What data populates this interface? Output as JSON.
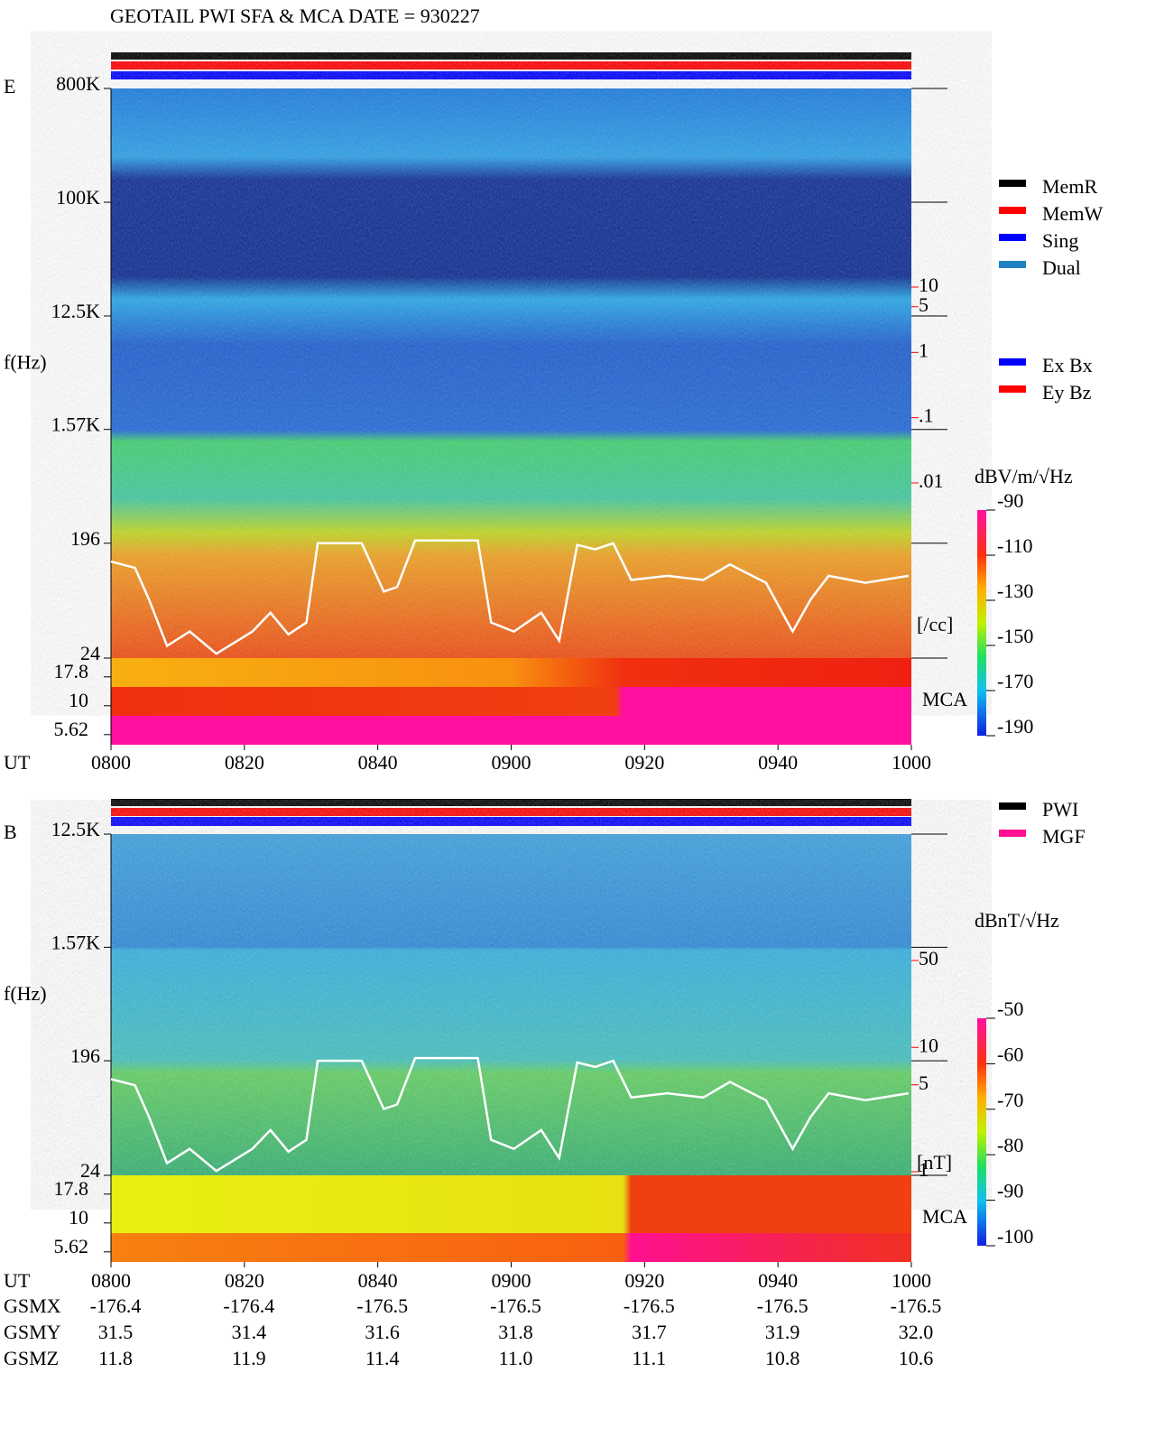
{
  "title": "GEOTAIL  PWI SFA & MCA   DATE = 930227",
  "chart_data": [
    {
      "type": "spectrogram",
      "panel_label": "E",
      "y_label": "f(Hz)",
      "x_label": "UT",
      "log_y": true,
      "ylim": [
        24,
        800000
      ],
      "yticks": [
        {
          "value": 800000,
          "label": "800K"
        },
        {
          "value": 100000,
          "label": "100K"
        },
        {
          "value": 12500,
          "label": "12.5K"
        },
        {
          "value": 1570,
          "label": "1.57K"
        },
        196,
        24
      ],
      "mca_label": "MCA",
      "mca_ticks": [
        17.8,
        10,
        5.62
      ],
      "xlim": [
        480,
        600
      ],
      "xticks": [
        {
          "value": 480,
          "label": "0800"
        },
        {
          "value": 500,
          "label": "0820"
        },
        {
          "value": 520,
          "label": "0840"
        },
        {
          "value": 540,
          "label": "0900"
        },
        {
          "value": 560,
          "label": "0920"
        },
        {
          "value": 580,
          "label": "0940"
        },
        {
          "value": 600,
          "label": "1000"
        }
      ],
      "trace": {
        "color": "#ffffff",
        "x": [
          480,
          483.6,
          485.7,
          488.4,
          491.8,
          495.8,
          501.2,
          503.9,
          506.6,
          509.3,
          511,
          517.6,
          520.9,
          522.9,
          525.6,
          535,
          537,
          540.4,
          544.5,
          547.2,
          549.9,
          552.6,
          555.3,
          558,
          563.4,
          568.8,
          572.8,
          578.2,
          582.2,
          584.9,
          587.6,
          593.1,
          599.6
        ],
        "values": [
          140,
          125,
          70,
          30,
          39,
          26,
          39,
          55,
          37,
          46,
          196,
          196,
          81,
          88,
          206,
          206,
          46,
          39,
          55,
          33,
          190,
          175,
          196,
          100,
          108,
          100,
          133,
          95,
          39,
          70,
          108,
          95,
          108
        ]
      },
      "y2_log": true,
      "y2lim": [
        0.01,
        10
      ],
      "y2_color": "#ff0000",
      "y2_label": "[/cc]",
      "y2ticks": [
        10,
        5,
        1,
        {
          "value": 0.1,
          "label": ".1"
        },
        {
          "value": 0.01,
          "label": ".01"
        }
      ],
      "colorbar": {
        "label": "dBV/m/√Hz",
        "lim": [
          -190,
          -90
        ],
        "ticks": [
          -90,
          -110,
          -130,
          -150,
          -170,
          -190
        ]
      },
      "legend": [
        {
          "name": "MemR",
          "color": "#000000"
        },
        {
          "name": "MemW",
          "color": "#ff0000"
        },
        {
          "name": "Sing",
          "color": "#0000ff"
        },
        {
          "name": "Dual",
          "color": "#2080c0"
        }
      ],
      "legend2": [
        {
          "name": "Ex Bx",
          "color": "#0000ff"
        },
        {
          "name": "Ey Bz",
          "color": "#ff0000"
        }
      ]
    },
    {
      "type": "spectrogram",
      "panel_label": "B",
      "y_label": "f(Hz)",
      "x_label": "UT",
      "log_y": true,
      "ylim": [
        24,
        12500
      ],
      "yticks": [
        {
          "value": 12500,
          "label": "12.5K"
        },
        {
          "value": 1570,
          "label": "1.57K"
        },
        196,
        24
      ],
      "mca_label": "MCA",
      "mca_ticks": [
        17.8,
        10,
        5.62
      ],
      "xlim": [
        480,
        600
      ],
      "xticks": [
        {
          "value": 480,
          "label": "0800"
        },
        {
          "value": 500,
          "label": "0820"
        },
        {
          "value": 520,
          "label": "0840"
        },
        {
          "value": 540,
          "label": "0900"
        },
        {
          "value": 560,
          "label": "0920"
        },
        {
          "value": 580,
          "label": "0940"
        },
        {
          "value": 600,
          "label": "1000"
        }
      ],
      "trace": {
        "color": "#ffffff",
        "x": [
          480,
          483.6,
          485.7,
          488.4,
          491.8,
          495.8,
          501.2,
          503.9,
          506.6,
          509.3,
          511,
          517.6,
          520.9,
          522.9,
          525.6,
          535,
          537,
          540.4,
          544.5,
          547.2,
          549.9,
          552.6,
          555.3,
          558,
          563.4,
          568.8,
          572.8,
          578.2,
          582.2,
          584.9,
          587.6,
          593.1,
          599.6
        ],
        "values": [
          140,
          125,
          70,
          30,
          39,
          26,
          39,
          55,
          37,
          46,
          196,
          196,
          81,
          88,
          206,
          206,
          46,
          39,
          55,
          33,
          190,
          175,
          196,
          100,
          108,
          100,
          133,
          95,
          39,
          70,
          108,
          95,
          108
        ]
      },
      "y2_log": true,
      "y2lim": [
        1,
        50
      ],
      "y2_color": "#ff0000",
      "y2_label": "[nT]",
      "y2ticks": [
        50,
        10,
        5,
        1
      ],
      "colorbar": {
        "label": "dBnT/√Hz",
        "lim": [
          -100,
          -50
        ],
        "ticks": [
          -50,
          -60,
          -70,
          -80,
          -90,
          -100
        ]
      },
      "legend": [
        {
          "name": "PWI",
          "color": "#000000"
        },
        {
          "name": "MGF",
          "color": "#ff1090"
        }
      ]
    }
  ],
  "position_table": {
    "rows": [
      {
        "label": "GSMX",
        "values": [
          -176.4,
          -176.4,
          -176.5,
          -176.5,
          -176.5,
          -176.5,
          -176.5
        ]
      },
      {
        "label": "GSMY",
        "values": [
          31.5,
          31.4,
          31.6,
          31.8,
          31.7,
          31.9,
          {
            "value": 32,
            "label": "32.0"
          }
        ]
      },
      {
        "label": "GSMZ",
        "values": [
          11.8,
          11.9,
          11.4,
          {
            "value": 11,
            "label": "11.0"
          },
          11.1,
          10.8,
          10.6
        ]
      }
    ]
  }
}
